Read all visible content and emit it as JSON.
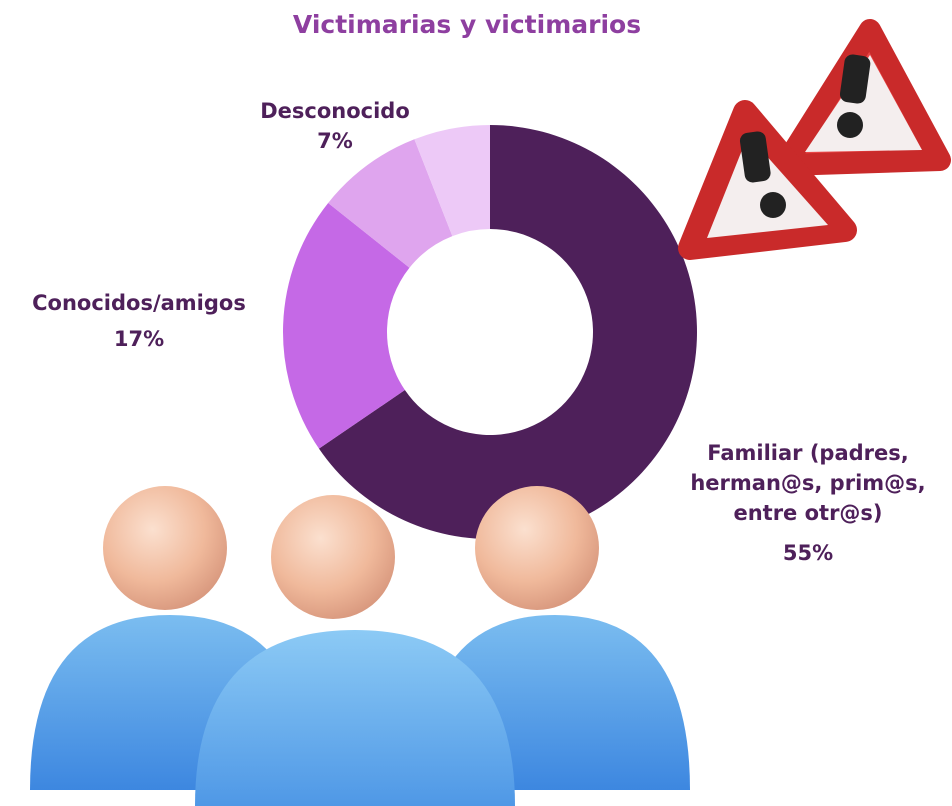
{
  "chart_data": {
    "type": "donut",
    "title": "Victimarias y victimarios",
    "categories": [
      "Familiar (padres, herman@s, prim@s, entre otr@s)",
      "Conocidos/amigos",
      "Desconocido",
      null
    ],
    "values": [
      55,
      17,
      7,
      5
    ],
    "value_labels": [
      "55%",
      "17%",
      "7%",
      null
    ],
    "colors": [
      "#4e205a",
      "#c569e6",
      "#dfa5ee",
      "#edc9f7"
    ]
  }
}
